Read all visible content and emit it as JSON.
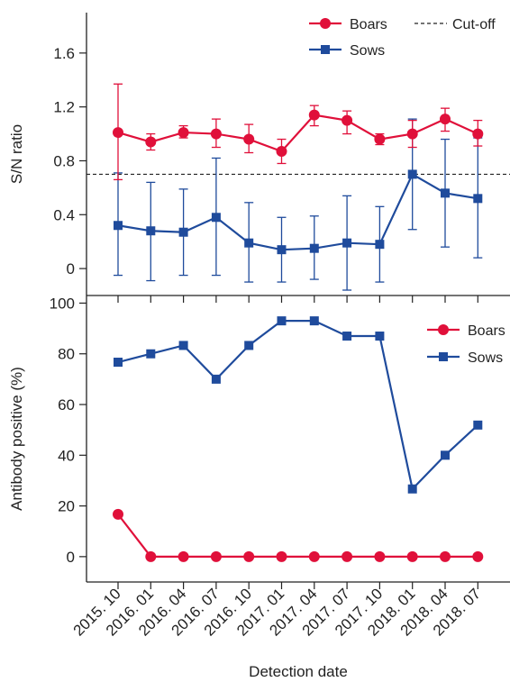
{
  "chart_data": [
    {
      "type": "line",
      "categories": [
        "2015. 10",
        "2016. 01",
        "2016. 04",
        "2016. 07",
        "2016. 10",
        "2017. 01",
        "2017. 04",
        "2017. 07",
        "2017. 10",
        "2018. 01",
        "2018. 04",
        "2018. 07"
      ],
      "ylabel": "S/N ratio",
      "ylim": [
        -0.2,
        1.9
      ],
      "yticks": [
        "0",
        "0.4",
        "0.8",
        "1.2",
        "1.6"
      ],
      "ytick_values": [
        0,
        0.4,
        0.8,
        1.2,
        1.6
      ],
      "cutoff": {
        "name": "Cut-off",
        "value": 0.7
      },
      "legend_position": "top-right",
      "series": [
        {
          "name": "Boars",
          "marker": "circle",
          "color": "#e0103a",
          "values": [
            1.01,
            0.94,
            1.01,
            1.0,
            0.96,
            0.87,
            1.14,
            1.1,
            0.96,
            1.0,
            1.11,
            1.0
          ],
          "err_low": [
            0.66,
            0.88,
            0.97,
            0.9,
            0.86,
            0.78,
            1.06,
            1.0,
            0.92,
            0.9,
            1.02,
            0.91
          ],
          "err_high": [
            1.37,
            1.0,
            1.06,
            1.11,
            1.07,
            0.96,
            1.21,
            1.17,
            1.0,
            1.1,
            1.19,
            1.1
          ]
        },
        {
          "name": "Sows",
          "marker": "square",
          "color": "#1f4b9c",
          "values": [
            0.32,
            0.28,
            0.27,
            0.38,
            0.19,
            0.14,
            0.15,
            0.19,
            0.18,
            0.7,
            0.56,
            0.52
          ],
          "err_low": [
            -0.05,
            -0.09,
            -0.05,
            -0.05,
            -0.1,
            -0.1,
            -0.08,
            -0.16,
            -0.1,
            0.29,
            0.16,
            0.08
          ],
          "err_high": [
            0.71,
            0.64,
            0.59,
            0.82,
            0.49,
            0.38,
            0.39,
            0.54,
            0.46,
            1.11,
            0.96,
            0.97
          ]
        }
      ]
    },
    {
      "type": "line",
      "categories": [
        "2015. 10",
        "2016. 01",
        "2016. 04",
        "2016. 07",
        "2016. 10",
        "2017. 01",
        "2017. 04",
        "2017. 07",
        "2017. 10",
        "2018. 01",
        "2018. 04",
        "2018. 07"
      ],
      "xlabel": "Detection date",
      "ylabel": "Antibody positive (%)",
      "ylim": [
        -10,
        103
      ],
      "yticks": [
        "0",
        "20",
        "40",
        "60",
        "80",
        "100"
      ],
      "ytick_values": [
        0,
        20,
        40,
        60,
        80,
        100
      ],
      "legend_position": "top-right",
      "series": [
        {
          "name": "Boars",
          "marker": "circle",
          "color": "#e0103a",
          "values": [
            16.7,
            0,
            0,
            0,
            0,
            0,
            0,
            0,
            0,
            0,
            0,
            0
          ]
        },
        {
          "name": "Sows",
          "marker": "square",
          "color": "#1f4b9c",
          "values": [
            76.7,
            80,
            83.3,
            70,
            83.3,
            93,
            93,
            87,
            87,
            26.7,
            40,
            51.9
          ]
        }
      ]
    }
  ]
}
